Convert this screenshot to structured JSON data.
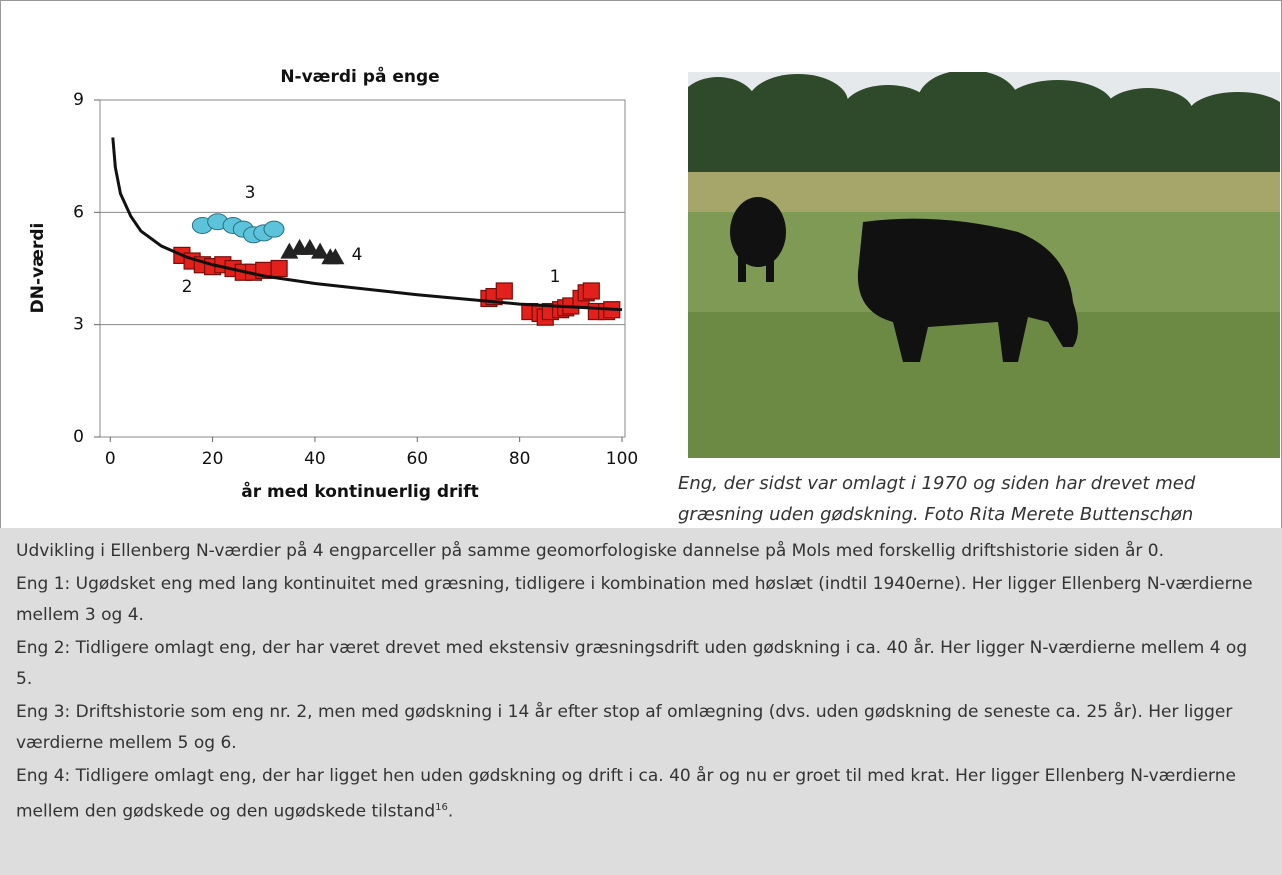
{
  "chart_data": {
    "type": "scatter",
    "title": "N-værdi på enge",
    "x_label": "år med kontinuerlig drift",
    "y_label": "DN-værdi",
    "xlim": [
      -2,
      100
    ],
    "ylim": [
      0,
      9
    ],
    "xticks": [
      0,
      20,
      40,
      60,
      80,
      100
    ],
    "yticks": [
      0,
      3,
      6,
      9
    ],
    "grid": true,
    "series": [
      {
        "name": "1",
        "marker": "square",
        "color": "#e3211c",
        "x": [
          74,
          75,
          77,
          82,
          84,
          85,
          86,
          88,
          89,
          90,
          92,
          93,
          94,
          95,
          97,
          98
        ],
        "values": [
          3.7,
          3.75,
          3.9,
          3.35,
          3.3,
          3.2,
          3.35,
          3.4,
          3.45,
          3.5,
          3.7,
          3.85,
          3.9,
          3.35,
          3.35,
          3.4
        ]
      },
      {
        "name": "2",
        "marker": "square",
        "color": "#e3211c",
        "x": [
          14,
          16,
          18,
          20,
          22,
          24,
          26,
          28,
          30,
          33
        ],
        "values": [
          4.85,
          4.7,
          4.6,
          4.55,
          4.6,
          4.5,
          4.4,
          4.4,
          4.45,
          4.5
        ]
      },
      {
        "name": "3",
        "marker": "circle",
        "color": "#5cc3da",
        "x": [
          18,
          21,
          24,
          26,
          28,
          30,
          32
        ],
        "values": [
          5.65,
          5.75,
          5.65,
          5.55,
          5.4,
          5.45,
          5.55
        ]
      },
      {
        "name": "4",
        "marker": "triangle",
        "color": "#222222",
        "x": [
          35,
          37,
          39,
          41,
          43,
          44
        ],
        "values": [
          4.95,
          5.05,
          5.05,
          4.95,
          4.8,
          4.8
        ]
      },
      {
        "marker": "line",
        "color": "#111111",
        "x": [
          0.5,
          1,
          2,
          4,
          6,
          10,
          15,
          20,
          30,
          40,
          60,
          80,
          100
        ],
        "values": [
          8.0,
          7.2,
          6.5,
          5.9,
          5.5,
          5.1,
          4.8,
          4.6,
          4.3,
          4.1,
          3.8,
          3.55,
          3.4
        ]
      }
    ]
  },
  "photo_caption": [
    "Eng, der sidst var omlagt i 1970 og siden har drevet med",
    "græsning uden gødskning. Foto Rita Merete Buttenschøn"
  ],
  "paragraphs": [
    {
      "text": "Udvikling i Ellenberg N-værdier på 4 engparceller på samme geomorfologiske dannelse på Mols med forskellig driftshistorie siden år 0."
    },
    {
      "text": "Eng 1: Ugødsket eng med lang kontinuitet med græsning, tidligere i kombination med høslæt (indtil 1940erne). Her ligger Ellen­berg N-værdierne mellem 3 og 4."
    },
    {
      "text": "Eng 2: Tidligere omlagt eng, der har været drevet med ekstensiv græsningsdrift uden gødskning i ca. 40 år. Her ligger N-værdi­erne mellem 4 og 5."
    },
    {
      "text": "Eng 3: Driftshistorie som eng nr. 2, men med gødskning i 14 år efter stop af omlægning (dvs. uden gødskning de seneste ca. 25 år). Her ligger værdierne mellem 5 og 6."
    },
    {
      "text": "Eng 4: Tidligere omlagt eng, der har ligget hen uden gødskning og drift i ca. 40 år og nu er groet til med krat. Her ligger Ellen­berg N-værdierne mellem den gødskede og den ugødskede tilstand",
      "footnote": "16",
      "end": "."
    }
  ]
}
